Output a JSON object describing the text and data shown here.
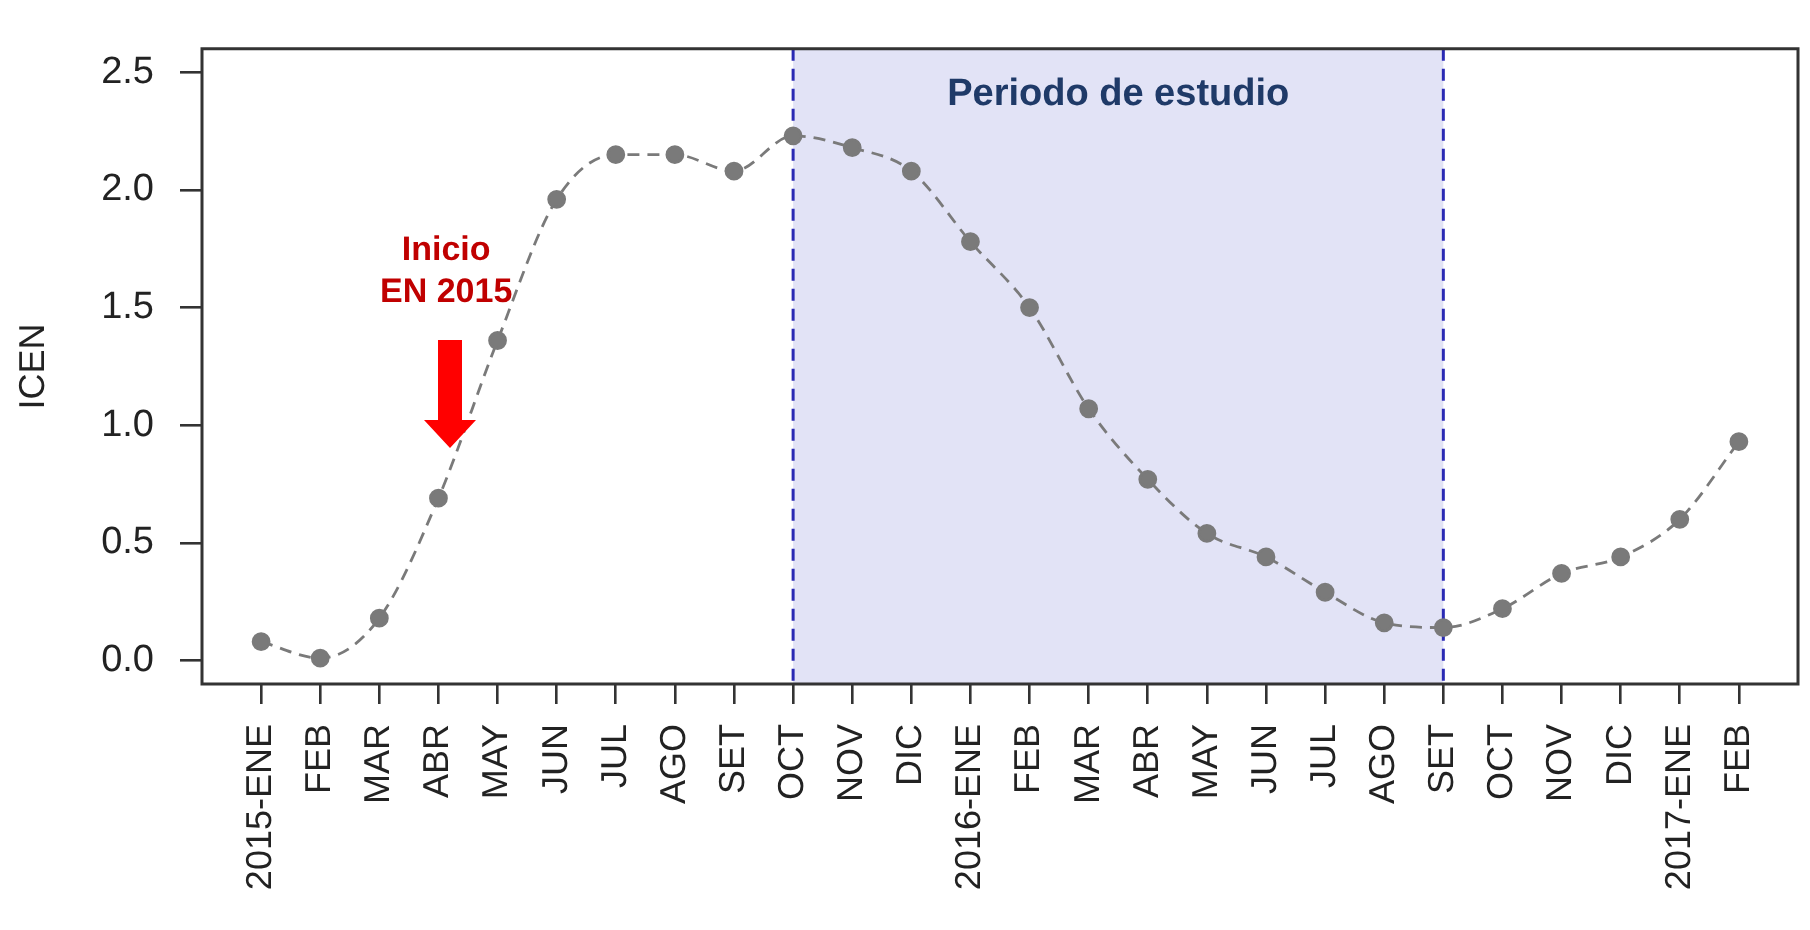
{
  "chart_data": {
    "type": "line",
    "ylabel": "ICEN",
    "x": [
      "2015-01",
      "2015-02",
      "2015-03",
      "2015-04",
      "2015-05",
      "2015-06",
      "2015-07",
      "2015-08",
      "2015-09",
      "2015-10",
      "2015-11",
      "2015-12",
      "2016-01",
      "2016-02",
      "2016-03",
      "2016-04",
      "2016-05",
      "2016-06",
      "2016-07",
      "2016-08",
      "2016-09",
      "2016-10",
      "2016-11",
      "2016-12",
      "2017-01",
      "2017-02"
    ],
    "series": [
      {
        "color": "#7a7a7a",
        "values": [
          0.08,
          0.01,
          0.18,
          0.69,
          1.36,
          1.96,
          2.15,
          2.15,
          2.08,
          2.23,
          2.18,
          2.08,
          1.78,
          1.5,
          1.07,
          0.77,
          0.54,
          0.44,
          0.29,
          0.16,
          0.14,
          0.22,
          0.37,
          0.44,
          0.6,
          0.93
        ]
      }
    ],
    "xlim": [
      "2014-12",
      "2017-03"
    ],
    "xticks": [
      {
        "value": "2015-01",
        "label": "2015-ENE"
      },
      {
        "value": "2015-02",
        "label": "FEB"
      },
      {
        "value": "2015-03",
        "label": "MAR"
      },
      {
        "value": "2015-04",
        "label": "ABR"
      },
      {
        "value": "2015-05",
        "label": "MAY"
      },
      {
        "value": "2015-06",
        "label": "JUN"
      },
      {
        "value": "2015-07",
        "label": "JUL"
      },
      {
        "value": "2015-08",
        "label": "AGO"
      },
      {
        "value": "2015-09",
        "label": "SET"
      },
      {
        "value": "2015-10",
        "label": "OCT"
      },
      {
        "value": "2015-11",
        "label": "NOV"
      },
      {
        "value": "2015-12",
        "label": "DIC"
      },
      {
        "value": "2016-01",
        "label": "2016-ENE"
      },
      {
        "value": "2016-02",
        "label": "FEB"
      },
      {
        "value": "2016-03",
        "label": "MAR"
      },
      {
        "value": "2016-04",
        "label": "ABR"
      },
      {
        "value": "2016-05",
        "label": "MAY"
      },
      {
        "value": "2016-06",
        "label": "JUN"
      },
      {
        "value": "2016-07",
        "label": "JUL"
      },
      {
        "value": "2016-08",
        "label": "AGO"
      },
      {
        "value": "2016-09",
        "label": "SET"
      },
      {
        "value": "2016-10",
        "label": "OCT"
      },
      {
        "value": "2016-11",
        "label": "NOV"
      },
      {
        "value": "2016-12",
        "label": "DIC"
      },
      {
        "value": "2017-01",
        "label": "2017-ENE"
      },
      {
        "value": "2017-02",
        "label": "FEB"
      }
    ],
    "ylim": [
      -0.1,
      2.6
    ],
    "yticks": [
      {
        "value": 0,
        "label": "0.0"
      },
      0.5,
      {
        "value": 1,
        "label": "1.0"
      },
      1.5,
      {
        "value": 2,
        "label": "2.0"
      },
      2.5
    ],
    "bands": [
      {
        "axis": "x",
        "from": "2015-10",
        "to": "2016-09",
        "label": "Periodo de estudio",
        "color": "#e2e3f6"
      }
    ],
    "ref_lines": [
      {
        "axis": "x",
        "value": "2015-10",
        "color": "#2a2ab4",
        "line_style": "dashed"
      },
      {
        "axis": "x",
        "value": "2016-09",
        "color": "#2a2ab4",
        "line_style": "dashed"
      }
    ],
    "annotations": [
      "Inicio EN 2015"
    ],
    "grid": false,
    "legend": false,
    "marker": "circle",
    "line_style": "dashed"
  }
}
